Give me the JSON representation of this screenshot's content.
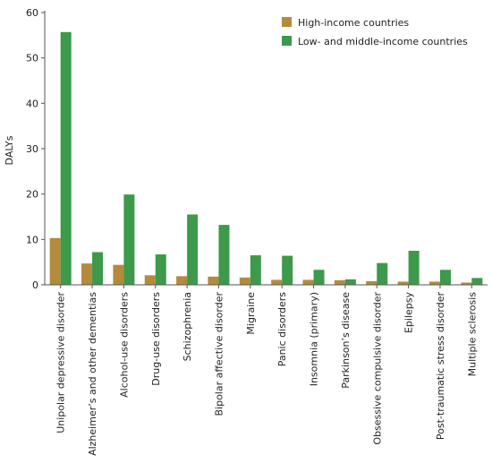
{
  "chart_data": {
    "type": "bar",
    "ylabel": "DALYs",
    "xlabel": "",
    "ylim": [
      0,
      60
    ],
    "yticks": [
      0,
      10,
      20,
      30,
      40,
      50,
      60
    ],
    "grid": false,
    "legend_position": "top-right",
    "categories": [
      "Unipolar depressive disorder",
      "Alzheimer’s and other dementias",
      "Alcohol-use disorders",
      "Drug-use disorders",
      "Schizophrenia",
      "Bipolar affective disorder",
      "Migraine",
      "Panic disorders",
      "Insomnia (primary)",
      "Parkinson’s disease",
      "Obsessive compulsive disorder",
      "Epilepsy",
      "Post-traumatic stress disorder",
      "Multiple sclerosis"
    ],
    "series": [
      {
        "name": "High-income countries",
        "color": "#b48a3c",
        "values": [
          10.3,
          4.7,
          4.4,
          2.1,
          1.9,
          1.8,
          1.6,
          1.1,
          1.1,
          1.0,
          0.8,
          0.7,
          0.7,
          0.5
        ]
      },
      {
        "name": "Low- and middle-income countries",
        "color": "#3c9a4a",
        "values": [
          55.7,
          7.2,
          19.9,
          6.7,
          15.5,
          13.2,
          6.5,
          6.4,
          3.3,
          1.2,
          4.8,
          7.5,
          3.3,
          1.5
        ]
      }
    ]
  }
}
